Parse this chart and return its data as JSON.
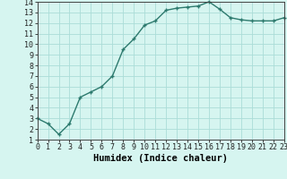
{
  "x": [
    0,
    1,
    2,
    3,
    4,
    5,
    6,
    7,
    8,
    9,
    10,
    11,
    12,
    13,
    14,
    15,
    16,
    17,
    18,
    19,
    20,
    21,
    22,
    23
  ],
  "y": [
    3.0,
    2.5,
    1.5,
    2.5,
    5.0,
    5.5,
    6.0,
    7.0,
    9.5,
    10.5,
    11.8,
    12.2,
    13.2,
    13.4,
    13.5,
    13.6,
    14.0,
    13.3,
    12.5,
    12.3,
    12.2,
    12.2,
    12.2,
    12.5
  ],
  "line_color": "#2d7a6e",
  "marker": "+",
  "marker_size": 3.5,
  "line_width": 1.0,
  "bg_color": "#d6f5f0",
  "grid_color": "#aaddd8",
  "xlabel": "Humidex (Indice chaleur)",
  "xlim": [
    0,
    23
  ],
  "ylim": [
    1,
    14
  ],
  "yticks": [
    1,
    2,
    3,
    4,
    5,
    6,
    7,
    8,
    9,
    10,
    11,
    12,
    13,
    14
  ],
  "xticks": [
    0,
    1,
    2,
    3,
    4,
    5,
    6,
    7,
    8,
    9,
    10,
    11,
    12,
    13,
    14,
    15,
    16,
    17,
    18,
    19,
    20,
    21,
    22,
    23
  ],
  "xlabel_fontsize": 7.5,
  "tick_fontsize": 6.0
}
